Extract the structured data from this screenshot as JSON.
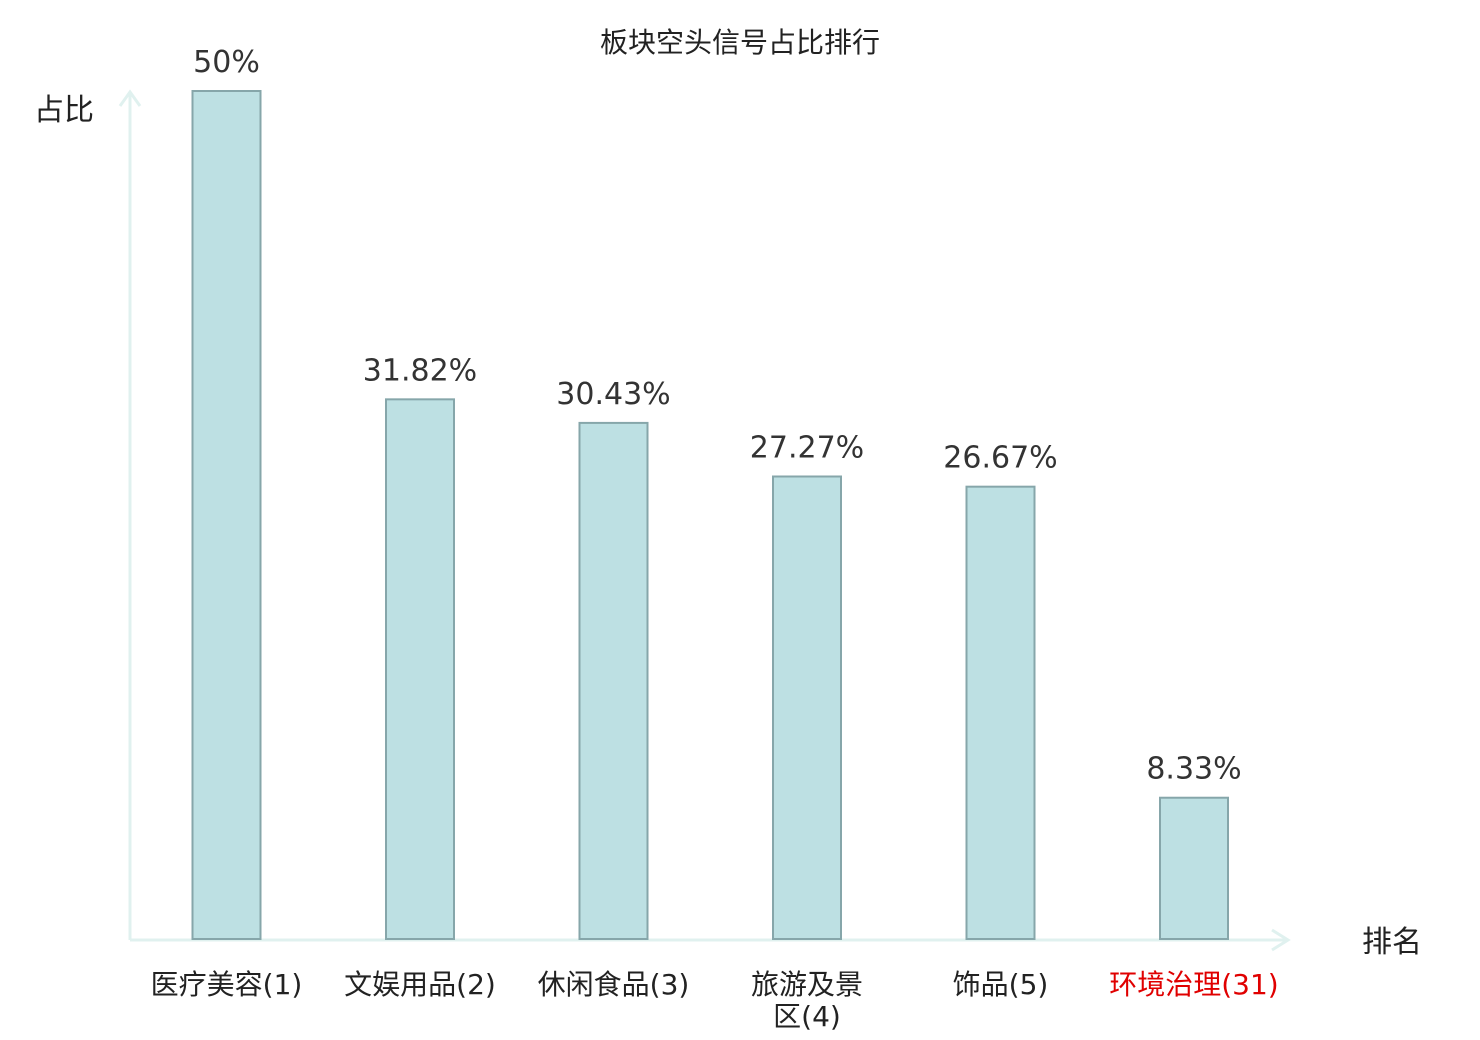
{
  "chart_data": {
    "type": "bar",
    "title": "板块空头信号占比排行",
    "ylabel": "占比",
    "xlabel": "排名",
    "categories": [
      "医疗美容(1)",
      "文娱用品(2)",
      "休闲食品(3)",
      "旅游及景区(4)",
      "饰品(5)",
      "环境治理(31)"
    ],
    "category_label_lines": [
      [
        "医疗美容(1)"
      ],
      [
        "文娱用品(2)"
      ],
      [
        "休闲食品(3)"
      ],
      [
        "旅游及景",
        "区(4)"
      ],
      [
        "饰品(5)"
      ],
      [
        "环境治理(31)"
      ]
    ],
    "values": [
      50,
      31.82,
      30.43,
      27.27,
      26.67,
      8.33
    ],
    "value_labels": [
      "50%",
      "31.82%",
      "30.43%",
      "27.27%",
      "26.67%",
      "8.33%"
    ],
    "highlight_index": 5,
    "ylim": [
      0,
      50
    ],
    "grid": false,
    "colors": {
      "bar_fill": "#bde0e3",
      "bar_stroke": "#86a6aa",
      "axis": "#e0f1ef",
      "text": "#222222",
      "value_text": "#333333",
      "highlight_text": "#e00000"
    }
  }
}
